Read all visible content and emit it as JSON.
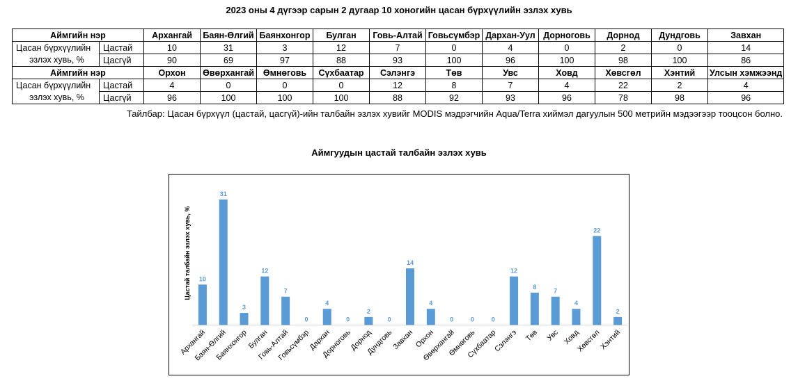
{
  "title": "2023 оны 4 дүгээр сарын 2 дугаар 10 хоногийн цасан бүрхүүлийн эзлэх хувь",
  "table": {
    "header_label": "Аймгийн нэр",
    "row_label_line1": "Цасан бүрхүүлийн",
    "row_label_line2": "эзлэх хувь, %",
    "snow_label": "Цастай",
    "nosnow_label": "Цасгүй",
    "blocks": [
      {
        "names": [
          "Архангай",
          "Баян-Өлгий",
          "Баянхонгор",
          "Булган",
          "Говь-Алтай",
          "Говьсүмбэр",
          "Дархан-Уул",
          "Дорноговь",
          "Дорнод",
          "Дундговь",
          "Завхан"
        ],
        "snow": [
          "10",
          "31",
          "3",
          "12",
          "7",
          "0",
          "4",
          "0",
          "2",
          "0",
          "14"
        ],
        "nosnow": [
          "90",
          "69",
          "97",
          "88",
          "93",
          "100",
          "96",
          "100",
          "98",
          "100",
          "86"
        ]
      },
      {
        "names": [
          "Орхон",
          "Өвөрхангай",
          "Өмнөговь",
          "Сүхбаатар",
          "Сэлэнгэ",
          "Төв",
          "Увс",
          "Ховд",
          "Хөвсгөл",
          "Хэнтий",
          "Улсын хэмжээнд"
        ],
        "snow": [
          "4",
          "0",
          "0",
          "0",
          "12",
          "8",
          "7",
          "4",
          "22",
          "2",
          "4"
        ],
        "nosnow": [
          "96",
          "100",
          "100",
          "100",
          "88",
          "92",
          "93",
          "96",
          "78",
          "98",
          "96"
        ]
      }
    ]
  },
  "note": "Тайлбар: Цасан бүрхүүл (цастай, цасгүй)-ийн талбайн эзлэх хувийг MODIS мэдрэгчийн Aqua/Terra хиймэл дагуулын 500 метрийн мэдээгээр тооцсон болно.",
  "chart_data": {
    "type": "bar",
    "title": "Аймгуудын цастай талбайн эзлэх хувь",
    "xlabel": "",
    "ylabel": "Цастай талбайн эзлэх хувь, %",
    "categories": [
      "Архангай",
      "Баян-Өлгий",
      "Баянхонгор",
      "Булган",
      "Говь-Алтай",
      "Говьсүмбэр",
      "Дархан",
      "Дорноговь",
      "Дорнод",
      "Дундговь",
      "Завхан",
      "Орхон",
      "Өвөрхангай",
      "Өмнөговь",
      "Сүхбаатар",
      "Сэлэнгэ",
      "Төв",
      "Увс",
      "Ховд",
      "Хөвсгөл",
      "Хэнтий"
    ],
    "values": [
      10,
      31,
      3,
      12,
      7,
      0,
      4,
      0,
      2,
      0,
      14,
      4,
      0,
      0,
      0,
      12,
      8,
      7,
      4,
      22,
      2
    ],
    "ylim": [
      0,
      31
    ],
    "grid": false,
    "bar_color": "#5b9bd5",
    "label_color": "#5b9bd5",
    "axis_color": "#d9d9d9"
  }
}
